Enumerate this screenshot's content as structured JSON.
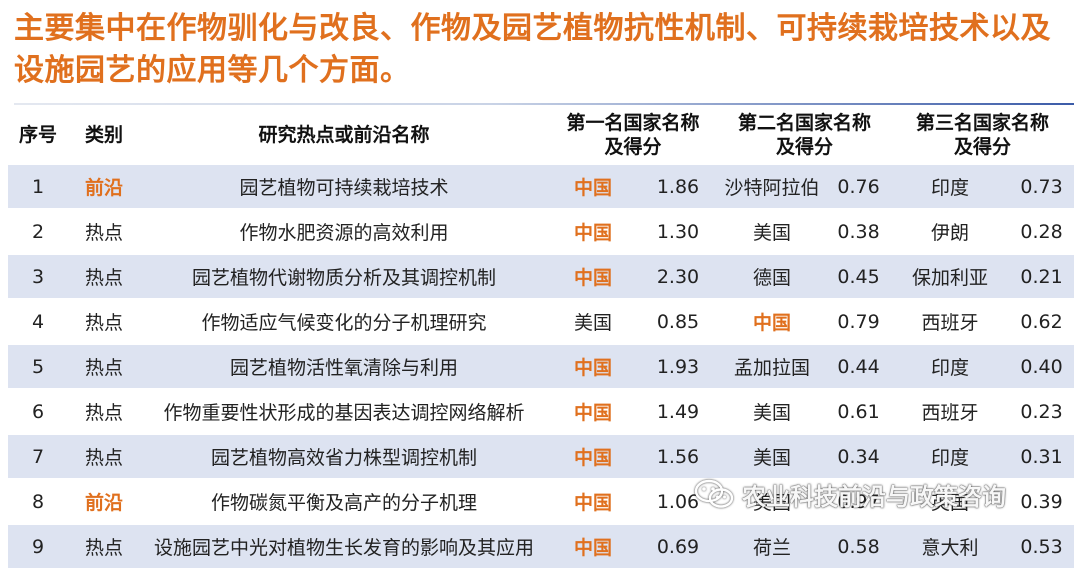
{
  "headline": "主要集中在作物驯化与改良、作物及园艺植物抗性机制、可持续栽培技术以及设施园艺的应用等几个方面。",
  "table": {
    "headers": {
      "seq": "序号",
      "category": "类别",
      "topic": "研究热点或前沿名称",
      "first": [
        "第一名国家名称",
        "及得分"
      ],
      "second": [
        "第二名国家名称",
        "及得分"
      ],
      "third": [
        "第三名国家名称",
        "及得分"
      ]
    },
    "rows": [
      {
        "seq": "1",
        "category": "前沿",
        "topic": "园艺植物可持续栽培技术",
        "first_country": "中国",
        "first_score": "1.86",
        "second_country": "沙特阿拉伯",
        "second_score": "0.76",
        "third_country": "印度",
        "third_score": "0.73"
      },
      {
        "seq": "2",
        "category": "热点",
        "topic": "作物水肥资源的高效利用",
        "first_country": "中国",
        "first_score": "1.30",
        "second_country": "美国",
        "second_score": "0.38",
        "third_country": "伊朗",
        "third_score": "0.28"
      },
      {
        "seq": "3",
        "category": "热点",
        "topic": "园艺植物代谢物质分析及其调控机制",
        "first_country": "中国",
        "first_score": "2.30",
        "second_country": "德国",
        "second_score": "0.45",
        "third_country": "保加利亚",
        "third_score": "0.21"
      },
      {
        "seq": "4",
        "category": "热点",
        "topic": "作物适应气候变化的分子机理研究",
        "first_country": "美国",
        "first_score": "0.85",
        "second_country": "中国",
        "second_score": "0.79",
        "third_country": "西班牙",
        "third_score": "0.62"
      },
      {
        "seq": "5",
        "category": "热点",
        "topic": "园艺植物活性氧清除与利用",
        "first_country": "中国",
        "first_score": "1.93",
        "second_country": "孟加拉国",
        "second_score": "0.44",
        "third_country": "印度",
        "third_score": "0.40"
      },
      {
        "seq": "6",
        "category": "热点",
        "topic": "作物重要性状形成的基因表达调控网络解析",
        "first_country": "中国",
        "first_score": "1.49",
        "second_country": "美国",
        "second_score": "0.61",
        "third_country": "西班牙",
        "third_score": "0.23"
      },
      {
        "seq": "7",
        "category": "热点",
        "topic": "园艺植物高效省力株型调控机制",
        "first_country": "中国",
        "first_score": "1.56",
        "second_country": "美国",
        "second_score": "0.34",
        "third_country": "印度",
        "third_score": "0.31"
      },
      {
        "seq": "8",
        "category": "前沿",
        "topic": "作物碳氮平衡及高产的分子机理",
        "first_country": "中国",
        "first_score": "1.06",
        "second_country": "美国",
        "second_score": "0.97",
        "third_country": "英国",
        "third_score": "0.39"
      },
      {
        "seq": "9",
        "category": "热点",
        "topic": "设施园艺中光对植物生长发育的影响及其应用",
        "first_country": "中国",
        "first_score": "0.69",
        "second_country": "荷兰",
        "second_score": "0.58",
        "third_country": "意大利",
        "third_score": "0.53"
      }
    ]
  },
  "watermark": {
    "text": "农业科技前沿与政策咨询",
    "icon": "wechat-icon"
  },
  "colors": {
    "accent": "#e0701e",
    "stripe": "#dde3f1",
    "rule": "#3b5ba8"
  }
}
